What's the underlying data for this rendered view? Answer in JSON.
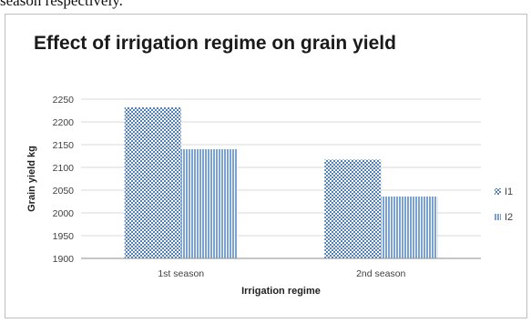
{
  "caption_fragment": "season respectively.",
  "colors": {
    "series1": "#4f81bd",
    "series2": "#8fb3dc",
    "grid": "#d9d9d9"
  },
  "chart_data": {
    "type": "bar",
    "title": "Effect of irrigation regime on grain yield",
    "xlabel": "Irrigation regime",
    "ylabel": "Grain yield kg",
    "categories": [
      "1st season",
      "2nd season"
    ],
    "series": [
      {
        "name": "I1",
        "values": [
          2232,
          2117
        ]
      },
      {
        "name": "I2",
        "values": [
          2140,
          2036
        ]
      }
    ],
    "ylim": [
      1900,
      2250
    ],
    "yticks": [
      1900,
      1950,
      2000,
      2050,
      2100,
      2150,
      2200,
      2250
    ],
    "grid": true,
    "legend_position": "right"
  }
}
